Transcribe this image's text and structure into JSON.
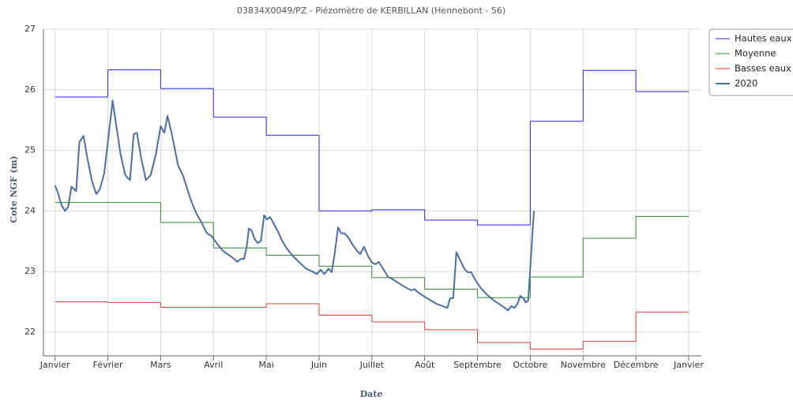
{
  "chart_data": {
    "type": "line",
    "title": "03834X0049/PZ - Piézomètre de KERBILLAN (Hennebont - 56)",
    "x_label": "Date",
    "y_label": "Cote NGF (m)",
    "xlim": [
      -0.22,
      12.24
    ],
    "ylim": [
      21.61,
      27
    ],
    "xticks": [
      {
        "value": 0,
        "label": "Janvier"
      },
      {
        "value": 1,
        "label": "Février"
      },
      {
        "value": 2,
        "label": "Mars"
      },
      {
        "value": 3,
        "label": "Avril"
      },
      {
        "value": 4,
        "label": "Mai"
      },
      {
        "value": 5,
        "label": "Juin"
      },
      {
        "value": 6,
        "label": "Juillet"
      },
      {
        "value": 7,
        "label": "Août"
      },
      {
        "value": 8,
        "label": "Septembre"
      },
      {
        "value": 9,
        "label": "Octobre"
      },
      {
        "value": 10,
        "label": "Novembre"
      },
      {
        "value": 11,
        "label": "Décembre"
      },
      {
        "value": 12,
        "label": "Janvier"
      }
    ],
    "yticks": [
      22,
      23,
      24,
      25,
      26,
      27
    ],
    "grid": true,
    "legend": "top-right",
    "series": [
      {
        "name": "Hautes eaux",
        "color": "#2626e6",
        "step": "post",
        "x": [
          0,
          1,
          2,
          3,
          4,
          5,
          6,
          7,
          8,
          9,
          10,
          11
        ],
        "values": [
          25.88,
          26.33,
          26.02,
          25.55,
          25.25,
          24.0,
          24.02,
          23.85,
          23.77,
          25.48,
          26.32,
          25.97
        ]
      },
      {
        "name": "Moyenne",
        "color": "#2e8b2e",
        "step": "post",
        "x": [
          0,
          1,
          2,
          3,
          4,
          5,
          6,
          7,
          8,
          9,
          10,
          11
        ],
        "values": [
          24.14,
          24.14,
          23.81,
          23.39,
          23.27,
          23.09,
          22.9,
          22.71,
          22.57,
          22.91,
          23.55,
          23.91
        ]
      },
      {
        "name": "Basses eaux",
        "color": "#e03a3a",
        "step": "post",
        "x": [
          0,
          1,
          2,
          3,
          4,
          5,
          6,
          7,
          8,
          9,
          10,
          11
        ],
        "values": [
          22.5,
          22.49,
          22.41,
          22.41,
          22.47,
          22.28,
          22.17,
          22.04,
          21.83,
          21.72,
          21.85,
          22.33
        ]
      },
      {
        "name": "2020",
        "color": "#4a6fa5",
        "width": 2,
        "x": [
          0,
          0.06,
          0.12,
          0.19,
          0.25,
          0.31,
          0.4,
          0.46,
          0.54,
          0.61,
          0.7,
          0.78,
          0.85,
          0.93,
          1.0,
          1.09,
          1.16,
          1.24,
          1.33,
          1.42,
          1.49,
          1.55,
          1.63,
          1.72,
          1.81,
          1.91,
          2.0,
          2.07,
          2.13,
          2.21,
          2.27,
          2.33,
          2.42,
          2.49,
          2.58,
          2.67,
          2.78,
          2.87,
          2.97,
          3.06,
          3.18,
          3.28,
          3.39,
          3.45,
          3.52,
          3.58,
          3.63,
          3.67,
          3.72,
          3.78,
          3.84,
          3.9,
          3.96,
          4.01,
          4.07,
          4.13,
          4.21,
          4.3,
          4.39,
          4.51,
          4.63,
          4.75,
          4.87,
          4.96,
          5.03,
          5.1,
          5.18,
          5.24,
          5.3,
          5.36,
          5.42,
          5.48,
          5.54,
          5.63,
          5.72,
          5.78,
          5.85,
          5.93,
          6.0,
          6.07,
          6.13,
          6.21,
          6.3,
          6.42,
          6.54,
          6.66,
          6.75,
          6.81,
          6.87,
          6.99,
          7.1,
          7.22,
          7.34,
          7.43,
          7.48,
          7.54,
          7.6,
          7.67,
          7.75,
          7.81,
          7.88,
          7.96,
          8.06,
          8.18,
          8.3,
          8.42,
          8.52,
          8.58,
          8.64,
          8.7,
          8.76,
          8.81,
          8.87,
          8.91,
          8.96,
          8.99,
          9.04,
          9.07
        ],
        "values": [
          24.42,
          24.29,
          24.1,
          24.0,
          24.07,
          24.4,
          24.33,
          25.14,
          25.24,
          24.88,
          24.49,
          24.28,
          24.36,
          24.62,
          25.14,
          25.82,
          25.4,
          24.94,
          24.59,
          24.51,
          25.27,
          25.29,
          24.88,
          24.51,
          24.59,
          24.94,
          25.4,
          25.29,
          25.57,
          25.27,
          25.01,
          24.75,
          24.59,
          24.4,
          24.16,
          23.97,
          23.8,
          23.64,
          23.58,
          23.47,
          23.34,
          23.28,
          23.21,
          23.16,
          23.21,
          23.21,
          23.41,
          23.71,
          23.68,
          23.54,
          23.47,
          23.51,
          23.93,
          23.86,
          23.9,
          23.81,
          23.68,
          23.51,
          23.38,
          23.25,
          23.15,
          23.05,
          23.0,
          22.96,
          23.03,
          22.96,
          23.05,
          22.99,
          23.32,
          23.73,
          23.63,
          23.63,
          23.58,
          23.45,
          23.34,
          23.29,
          23.41,
          23.25,
          23.15,
          23.12,
          23.16,
          23.05,
          22.92,
          22.86,
          22.79,
          22.73,
          22.69,
          22.71,
          22.66,
          22.59,
          22.53,
          22.47,
          22.43,
          22.4,
          22.56,
          22.56,
          23.32,
          23.19,
          23.05,
          22.99,
          22.99,
          22.86,
          22.73,
          22.62,
          22.53,
          22.46,
          22.4,
          22.36,
          22.43,
          22.4,
          22.47,
          22.6,
          22.56,
          22.49,
          22.52,
          22.92,
          23.64,
          24.0
        ]
      }
    ]
  }
}
